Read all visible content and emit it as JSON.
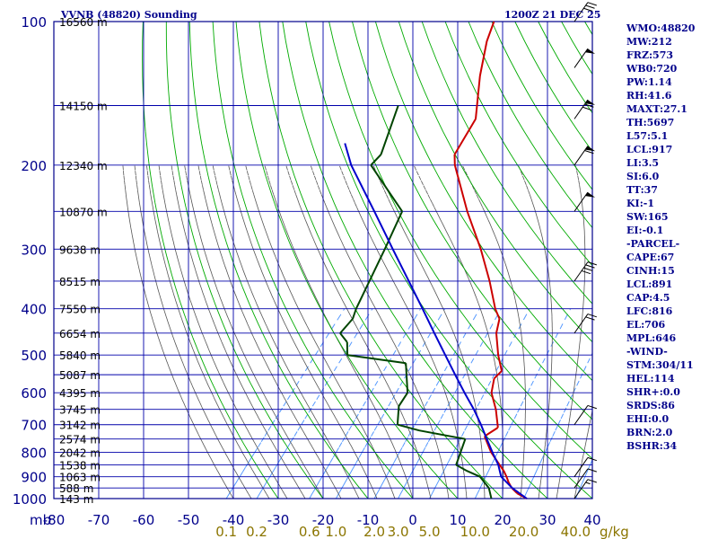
{
  "header": {
    "title": "VVNB (48820) Sounding",
    "datetime": "1200Z 21 DEC 25"
  },
  "indices": [
    "WMO:48820",
    "MW:212",
    "FRZ:573",
    "WB0:720",
    "PW:1.14",
    "RH:41.6",
    "MAXT:27.1",
    "TH:5697",
    "L57:5.1",
    "LCL:917",
    "LI:3.5",
    "SI:6.0",
    "TT:37",
    "KI:-1",
    "SW:165",
    "EI:-0.1",
    "-PARCEL-",
    "CAPE:67",
    "CINH:15",
    "LCL:891",
    "CAP:4.5",
    "LFC:816",
    "EL:706",
    "MPL:646",
    "-WIND-",
    "STM:304/11",
    "HEL:114",
    "SHR+:0.0",
    "SRDS:86",
    "EHI:0.0",
    "BRN:2.0",
    "BSHR:34"
  ],
  "colors": {
    "frame": "#00008b",
    "isobar": "#0000aa",
    "isotherm": "#0000aa",
    "dry_adiabat": "#00aa00",
    "moist_adiabat": "#555555",
    "mixing_ratio": "#5599ff",
    "temperature": "#cc0000",
    "dewpoint": "#004400",
    "parcel": "#0000cc",
    "wind_barb": "#000000",
    "mixing_label": "#8b7500"
  },
  "chart_data": {
    "type": "line",
    "title": "VVNB (48820) Sounding",
    "axes": {
      "x": {
        "quantity": "temperature",
        "unit": "C",
        "lim": [
          -80,
          40
        ],
        "ticks": [
          -80,
          -70,
          -60,
          -50,
          -40,
          -30,
          -20,
          -10,
          0,
          10,
          20,
          30,
          40
        ]
      },
      "y": {
        "quantity": "pressure",
        "unit": "mb",
        "scale": "log",
        "lim": [
          1000,
          100
        ],
        "ticks": [
          100,
          200,
          300,
          400,
          500,
          600,
          700,
          800,
          900,
          1000
        ]
      },
      "x_label_prefix": "mb"
    },
    "grid": true,
    "skew": true,
    "height_labels": [
      {
        "p": 100,
        "label": "16560 m"
      },
      {
        "p": 150,
        "label": "14150 m"
      },
      {
        "p": 200,
        "label": "12340 m"
      },
      {
        "p": 250,
        "label": "10870 m"
      },
      {
        "p": 300,
        "label": "9638 m"
      },
      {
        "p": 350,
        "label": "8515 m"
      },
      {
        "p": 400,
        "label": "7550 m"
      },
      {
        "p": 450,
        "label": "6654 m"
      },
      {
        "p": 500,
        "label": "5840 m"
      },
      {
        "p": 550,
        "label": "5087 m"
      },
      {
        "p": 600,
        "label": "4395 m"
      },
      {
        "p": 650,
        "label": "3745 m"
      },
      {
        "p": 700,
        "label": "3142 m"
      },
      {
        "p": 750,
        "label": "2574 m"
      },
      {
        "p": 800,
        "label": "2042 m"
      },
      {
        "p": 850,
        "label": "1538 m"
      },
      {
        "p": 900,
        "label": "1063 m"
      },
      {
        "p": 950,
        "label": "588 m"
      },
      {
        "p": 1000,
        "label": "143 m"
      }
    ],
    "mixing_ratio_labels": [
      "0.1",
      "0.2",
      "0.6",
      "1.0",
      "2.0",
      "3.0",
      "5.0",
      "10.0",
      "20.0",
      "40.0"
    ],
    "mixing_ratio_values": [
      0.1,
      0.2,
      0.6,
      1.0,
      2.0,
      3.0,
      5.0,
      10.0,
      20.0,
      40.0
    ],
    "mixing_ratio_unit": "g/kg",
    "series": [
      {
        "key": "temperature",
        "points": [
          [
            1000,
            25.4
          ],
          [
            975,
            22.3
          ],
          [
            950,
            20.1
          ],
          [
            925,
            18.4
          ],
          [
            900,
            16.9
          ],
          [
            875,
            15.2
          ],
          [
            850,
            13.2
          ],
          [
            800,
            9.0
          ],
          [
            740,
            4.6
          ],
          [
            710,
            6.0
          ],
          [
            650,
            2.2
          ],
          [
            600,
            -1.8
          ],
          [
            560,
            -3.8
          ],
          [
            540,
            -3.5
          ],
          [
            500,
            -7.2
          ],
          [
            450,
            -11.6
          ],
          [
            420,
            -13.5
          ],
          [
            400,
            -16.3
          ],
          [
            350,
            -22.6
          ],
          [
            300,
            -30.4
          ],
          [
            250,
            -40.3
          ],
          [
            200,
            -51.5
          ],
          [
            190,
            -53.5
          ],
          [
            160,
            -55.3
          ],
          [
            130,
            -62.2
          ],
          [
            110,
            -67.0
          ],
          [
            100,
            -69.0
          ]
        ]
      },
      {
        "key": "dewpoint",
        "points": [
          [
            1000,
            17.5
          ],
          [
            950,
            15.0
          ],
          [
            900,
            11.0
          ],
          [
            875,
            7.0
          ],
          [
            850,
            3.5
          ],
          [
            750,
            0.8
          ],
          [
            720,
            -11.0
          ],
          [
            700,
            -16.9
          ],
          [
            640,
            -20.0
          ],
          [
            600,
            -20.5
          ],
          [
            520,
            -26.3
          ],
          [
            500,
            -40.8
          ],
          [
            470,
            -43.2
          ],
          [
            450,
            -46.4
          ],
          [
            420,
            -46.2
          ],
          [
            400,
            -47.3
          ],
          [
            300,
            -51.8
          ],
          [
            250,
            -54.8
          ],
          [
            200,
            -70.2
          ],
          [
            190,
            -69.9
          ],
          [
            150,
            -75.0
          ]
        ]
      },
      {
        "key": "parcel",
        "points": [
          [
            1000,
            25.4
          ],
          [
            950,
            20.2
          ],
          [
            900,
            15.7
          ],
          [
            850,
            12.9
          ],
          [
            800,
            9.3
          ],
          [
            750,
            5.6
          ],
          [
            700,
            1.7
          ],
          [
            650,
            -2.7
          ],
          [
            600,
            -7.8
          ],
          [
            550,
            -13.2
          ],
          [
            500,
            -19.0
          ],
          [
            450,
            -25.4
          ],
          [
            400,
            -32.5
          ],
          [
            350,
            -40.6
          ],
          [
            300,
            -50.0
          ],
          [
            250,
            -61.0
          ],
          [
            200,
            -74.6
          ],
          [
            180,
            -80.0
          ]
        ]
      }
    ],
    "wind_barbs": [
      {
        "p": 1000,
        "speed_kt": 15
      },
      {
        "p": 950,
        "speed_kt": 10
      },
      {
        "p": 900,
        "speed_kt": 10
      },
      {
        "p": 700,
        "speed_kt": 10
      },
      {
        "p": 450,
        "speed_kt": 20
      },
      {
        "p": 350,
        "speed_kt": 40
      },
      {
        "p": 250,
        "speed_kt": 50
      },
      {
        "p": 200,
        "speed_kt": 60
      },
      {
        "p": 160,
        "speed_kt": 70
      },
      {
        "p": 125,
        "speed_kt": 50
      },
      {
        "p": 100,
        "speed_kt": 30
      }
    ]
  }
}
